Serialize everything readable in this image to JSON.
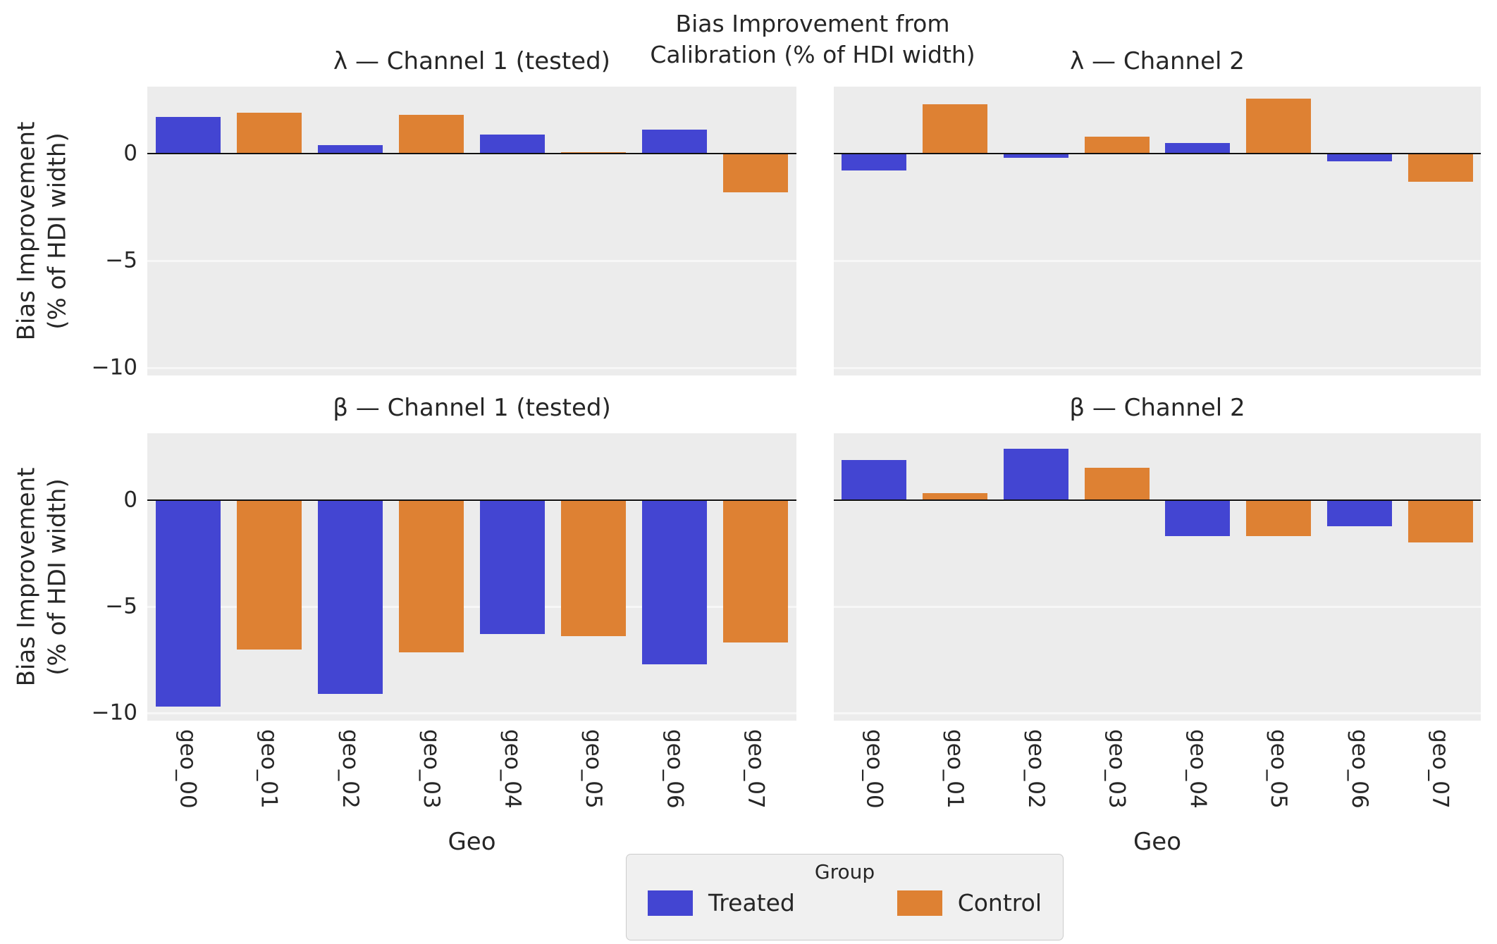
{
  "title": "Bias Improvement from\nCalibration (% of HDI width)",
  "axes": {
    "ylabel": "Bias Improvement\n(% of HDI width)",
    "xlabel": "Geo",
    "ytick_labels": [
      "0",
      "−5",
      "−10"
    ],
    "yticks": [
      0,
      -5,
      -10
    ],
    "ylim": [
      -10.35,
      3.12
    ]
  },
  "legend": {
    "title": "Group",
    "items": [
      {
        "label": "Treated",
        "color": "#4345d2"
      },
      {
        "label": "Control",
        "color": "#de8133"
      }
    ]
  },
  "colors": {
    "treated": "#4345d2",
    "control": "#de8133",
    "plot_bg": "#ececec",
    "grid": "#f7f7f7",
    "zero_line": "#111111",
    "text": "#262626",
    "legend_bg": "#f0f0f0"
  },
  "chart_data": {
    "type": "bar",
    "title": "Bias Improvement from Calibration (% of HDI width)",
    "xlabel": "Geo",
    "ylabel": "Bias Improvement (% of HDI width)",
    "grid": "horizontal",
    "legend_position": "bottom-center",
    "ylim": [
      -10.35,
      3.12
    ],
    "categories": [
      "geo_00",
      "geo_01",
      "geo_02",
      "geo_03",
      "geo_04",
      "geo_05",
      "geo_06",
      "geo_07"
    ],
    "group_by_category": [
      "Treated",
      "Control",
      "Treated",
      "Control",
      "Treated",
      "Control",
      "Treated",
      "Control"
    ],
    "subplots": [
      {
        "title": "λ — Channel 1 (tested)",
        "values": [
          1.7,
          1.9,
          0.4,
          1.8,
          0.9,
          0.05,
          1.1,
          -1.8
        ]
      },
      {
        "title": "λ — Channel 2",
        "values": [
          -0.8,
          2.3,
          -0.2,
          0.8,
          0.5,
          2.55,
          -0.35,
          -1.3
        ]
      },
      {
        "title": "β — Channel 1 (tested)",
        "values": [
          -9.7,
          -7.0,
          -9.1,
          -7.15,
          -6.3,
          -6.4,
          -7.7,
          -6.7
        ]
      },
      {
        "title": "β — Channel 2",
        "values": [
          1.85,
          0.3,
          2.4,
          1.5,
          -1.7,
          -1.7,
          -1.25,
          -2.0
        ]
      }
    ]
  }
}
